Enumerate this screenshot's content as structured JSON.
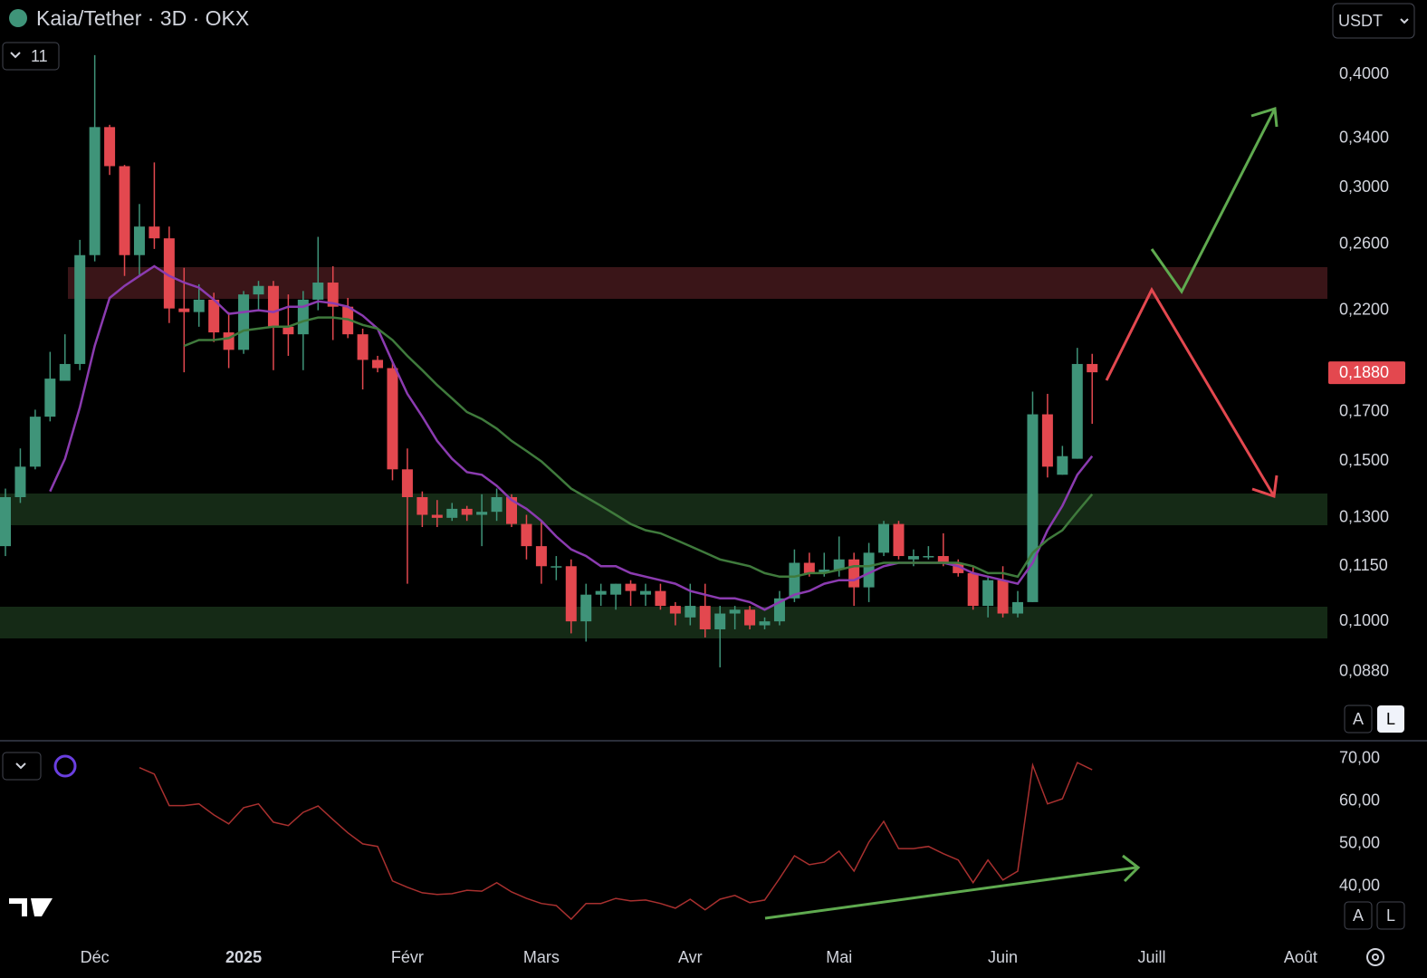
{
  "ui": {
    "interval_count": "11",
    "currency": "USDT",
    "scale_buttons": [
      "A",
      "L",
      "A",
      "L"
    ]
  },
  "chart_data": [
    {
      "type": "candlestick",
      "title": "Kaia/Tether · 3D · OKX",
      "up_color": "#3f9479",
      "down_color": "#e3484f",
      "log": true,
      "xlim": [
        -0.365,
        88.8
      ],
      "xticks": [
        {
          "value": 6,
          "label": "Déc"
        },
        {
          "value": 16,
          "label": "2025"
        },
        {
          "value": 27,
          "label": "Févr"
        },
        {
          "value": 36,
          "label": "Mars"
        },
        {
          "value": 46,
          "label": "Avr"
        },
        {
          "value": 56,
          "label": "Mai"
        },
        {
          "value": 67,
          "label": "Juin"
        },
        {
          "value": 77,
          "label": "Juill"
        },
        {
          "value": 87,
          "label": "Août"
        }
      ],
      "ylim": [
        0.0744,
        0.483
      ],
      "yticks": [
        {
          "value": 0.4,
          "label": "0,4000"
        },
        {
          "value": 0.34,
          "label": "0,3400"
        },
        {
          "value": 0.3,
          "label": "0,3000"
        },
        {
          "value": 0.26,
          "label": "0,2600"
        },
        {
          "value": 0.22,
          "label": "0,2200"
        },
        {
          "value": 0.17,
          "label": "0,1700"
        },
        {
          "value": 0.15,
          "label": "0,1500"
        },
        {
          "value": 0.13,
          "label": "0,1300"
        },
        {
          "value": 0.115,
          "label": "0,1150"
        },
        {
          "value": 0.1,
          "label": "0,1000"
        },
        {
          "value": 0.088,
          "label": "0,0880"
        }
      ],
      "last_price": {
        "value": 0.188,
        "label": "0,1880"
      },
      "open": [
        0.121,
        0.137,
        0.148,
        0.168,
        0.184,
        0.192,
        0.253,
        0.35,
        0.317,
        0.253,
        0.272,
        0.264,
        0.221,
        0.219,
        0.226,
        0.208,
        0.199,
        0.229,
        0.234,
        0.211,
        0.207,
        0.226,
        0.236,
        0.222,
        0.207,
        0.194,
        0.19,
        0.147,
        0.137,
        0.131,
        0.13,
        0.133,
        0.131,
        0.132,
        0.137,
        0.128,
        0.121,
        0.115,
        0.115,
        0.1,
        0.107,
        0.107,
        0.11,
        0.107,
        0.108,
        0.104,
        0.101,
        0.104,
        0.098,
        0.102,
        0.103,
        0.099,
        0.1,
        0.106,
        0.116,
        0.113,
        0.114,
        0.117,
        0.109,
        0.119,
        0.128,
        0.117,
        0.118,
        0.118,
        0.116,
        0.113,
        0.104,
        0.111,
        0.102,
        0.105,
        0.169,
        0.145,
        0.151,
        0.192
      ],
      "high": [
        0.14,
        0.155,
        0.171,
        0.198,
        0.207,
        0.263,
        0.42,
        0.352,
        0.318,
        0.288,
        0.32,
        0.272,
        0.245,
        0.235,
        0.23,
        0.219,
        0.231,
        0.237,
        0.237,
        0.229,
        0.231,
        0.265,
        0.246,
        0.227,
        0.21,
        0.196,
        0.193,
        0.155,
        0.139,
        0.136,
        0.135,
        0.134,
        0.138,
        0.14,
        0.138,
        0.131,
        0.129,
        0.118,
        0.117,
        0.11,
        0.11,
        0.11,
        0.111,
        0.11,
        0.11,
        0.105,
        0.11,
        0.11,
        0.104,
        0.104,
        0.104,
        0.101,
        0.108,
        0.12,
        0.119,
        0.119,
        0.124,
        0.119,
        0.122,
        0.129,
        0.129,
        0.12,
        0.121,
        0.125,
        0.117,
        0.115,
        0.112,
        0.115,
        0.108,
        0.179,
        0.178,
        0.156,
        0.2,
        0.197
      ],
      "low": [
        0.118,
        0.135,
        0.147,
        0.166,
        0.184,
        0.189,
        0.249,
        0.31,
        0.24,
        0.24,
        0.257,
        0.213,
        0.188,
        0.211,
        0.203,
        0.19,
        0.197,
        0.22,
        0.189,
        0.196,
        0.189,
        0.22,
        0.204,
        0.205,
        0.18,
        0.188,
        0.143,
        0.11,
        0.127,
        0.127,
        0.129,
        0.129,
        0.121,
        0.129,
        0.127,
        0.117,
        0.11,
        0.111,
        0.097,
        0.095,
        0.104,
        0.103,
        0.104,
        0.104,
        0.103,
        0.099,
        0.099,
        0.096,
        0.089,
        0.098,
        0.098,
        0.098,
        0.099,
        0.105,
        0.112,
        0.112,
        0.112,
        0.104,
        0.105,
        0.118,
        0.117,
        0.115,
        0.117,
        0.115,
        0.112,
        0.103,
        0.101,
        0.101,
        0.101,
        0.105,
        0.144,
        0.145,
        0.151,
        0.165
      ],
      "close": [
        0.137,
        0.148,
        0.168,
        0.185,
        0.192,
        0.253,
        0.35,
        0.317,
        0.253,
        0.272,
        0.264,
        0.221,
        0.219,
        0.226,
        0.208,
        0.199,
        0.229,
        0.234,
        0.211,
        0.207,
        0.226,
        0.236,
        0.222,
        0.207,
        0.194,
        0.19,
        0.147,
        0.137,
        0.131,
        0.13,
        0.133,
        0.131,
        0.132,
        0.137,
        0.128,
        0.121,
        0.115,
        0.115,
        0.1,
        0.107,
        0.108,
        0.11,
        0.108,
        0.108,
        0.104,
        0.102,
        0.104,
        0.098,
        0.102,
        0.103,
        0.099,
        0.1,
        0.106,
        0.116,
        0.113,
        0.114,
        0.117,
        0.109,
        0.119,
        0.128,
        0.118,
        0.118,
        0.118,
        0.116,
        0.113,
        0.104,
        0.111,
        0.102,
        0.105,
        0.169,
        0.148,
        0.152,
        0.192,
        0.188
      ],
      "lines": [
        {
          "color": "#8b3bb0",
          "values": [
            null,
            null,
            null,
            0.139,
            0.151,
            0.172,
            0.201,
            0.227,
            0.234,
            0.24,
            0.246,
            0.24,
            0.236,
            0.233,
            0.226,
            0.218,
            0.219,
            0.22,
            0.219,
            0.222,
            0.222,
            0.225,
            0.224,
            0.222,
            0.217,
            0.21,
            0.193,
            0.178,
            0.168,
            0.158,
            0.151,
            0.146,
            0.145,
            0.141,
            0.136,
            0.133,
            0.129,
            0.124,
            0.12,
            0.118,
            0.115,
            0.115,
            0.113,
            0.112,
            0.111,
            0.11,
            0.108,
            0.107,
            0.106,
            0.106,
            0.105,
            0.103,
            0.105,
            0.107,
            0.108,
            0.11,
            0.111,
            0.111,
            0.113,
            0.115,
            0.116,
            0.116,
            0.116,
            0.116,
            0.115,
            0.113,
            0.112,
            0.111,
            0.11,
            0.116,
            0.126,
            0.134,
            0.145,
            0.152
          ]
        },
        {
          "color": "#3f7a3c",
          "values": [
            null,
            null,
            null,
            null,
            null,
            null,
            null,
            null,
            null,
            null,
            null,
            null,
            0.201,
            0.204,
            0.204,
            0.205,
            0.209,
            0.21,
            0.211,
            0.211,
            0.214,
            0.216,
            0.216,
            0.215,
            0.212,
            0.21,
            0.204,
            0.196,
            0.189,
            0.182,
            0.176,
            0.17,
            0.167,
            0.163,
            0.158,
            0.154,
            0.15,
            0.145,
            0.14,
            0.137,
            0.134,
            0.131,
            0.128,
            0.126,
            0.125,
            0.123,
            0.121,
            0.119,
            0.117,
            0.116,
            0.115,
            0.113,
            0.112,
            0.112,
            0.113,
            0.113,
            0.114,
            0.115,
            0.115,
            0.116,
            0.116,
            0.116,
            0.116,
            0.116,
            0.116,
            0.115,
            0.113,
            0.113,
            0.112,
            0.119,
            0.123,
            0.126,
            0.132,
            0.138
          ]
        }
      ]
    },
    {
      "type": "line",
      "ylim": [
        27,
        73.8
      ],
      "yticks": [
        {
          "value": 70,
          "label": "70,00"
        },
        {
          "value": 60,
          "label": "60,00"
        },
        {
          "value": 50,
          "label": "50,00"
        },
        {
          "value": 40,
          "label": "40,00"
        }
      ],
      "series": [
        {
          "color": "#a8302f",
          "values": [
            null,
            null,
            null,
            null,
            null,
            null,
            null,
            null,
            null,
            67.9,
            66.4,
            59,
            59,
            59.4,
            56.8,
            54.7,
            58.5,
            59.4,
            55.1,
            54.3,
            57.4,
            58.9,
            55.7,
            52.6,
            50,
            49.4,
            41.3,
            39.8,
            38.5,
            38.1,
            38.3,
            39.1,
            38.9,
            40.9,
            38.7,
            37.2,
            36,
            35.5,
            32.3,
            36,
            36,
            37.2,
            36.6,
            36.8,
            36,
            34.9,
            37,
            34.5,
            37,
            37.9,
            36.2,
            36.8,
            41.9,
            47.2,
            45.1,
            45.7,
            48.3,
            43.6,
            50.4,
            55.3,
            48.9,
            48.9,
            49.4,
            47.7,
            46.2,
            40.9,
            46.2,
            41.5,
            43.6,
            68.5,
            59.4,
            60.6,
            69.1,
            67.4
          ]
        }
      ]
    }
  ]
}
